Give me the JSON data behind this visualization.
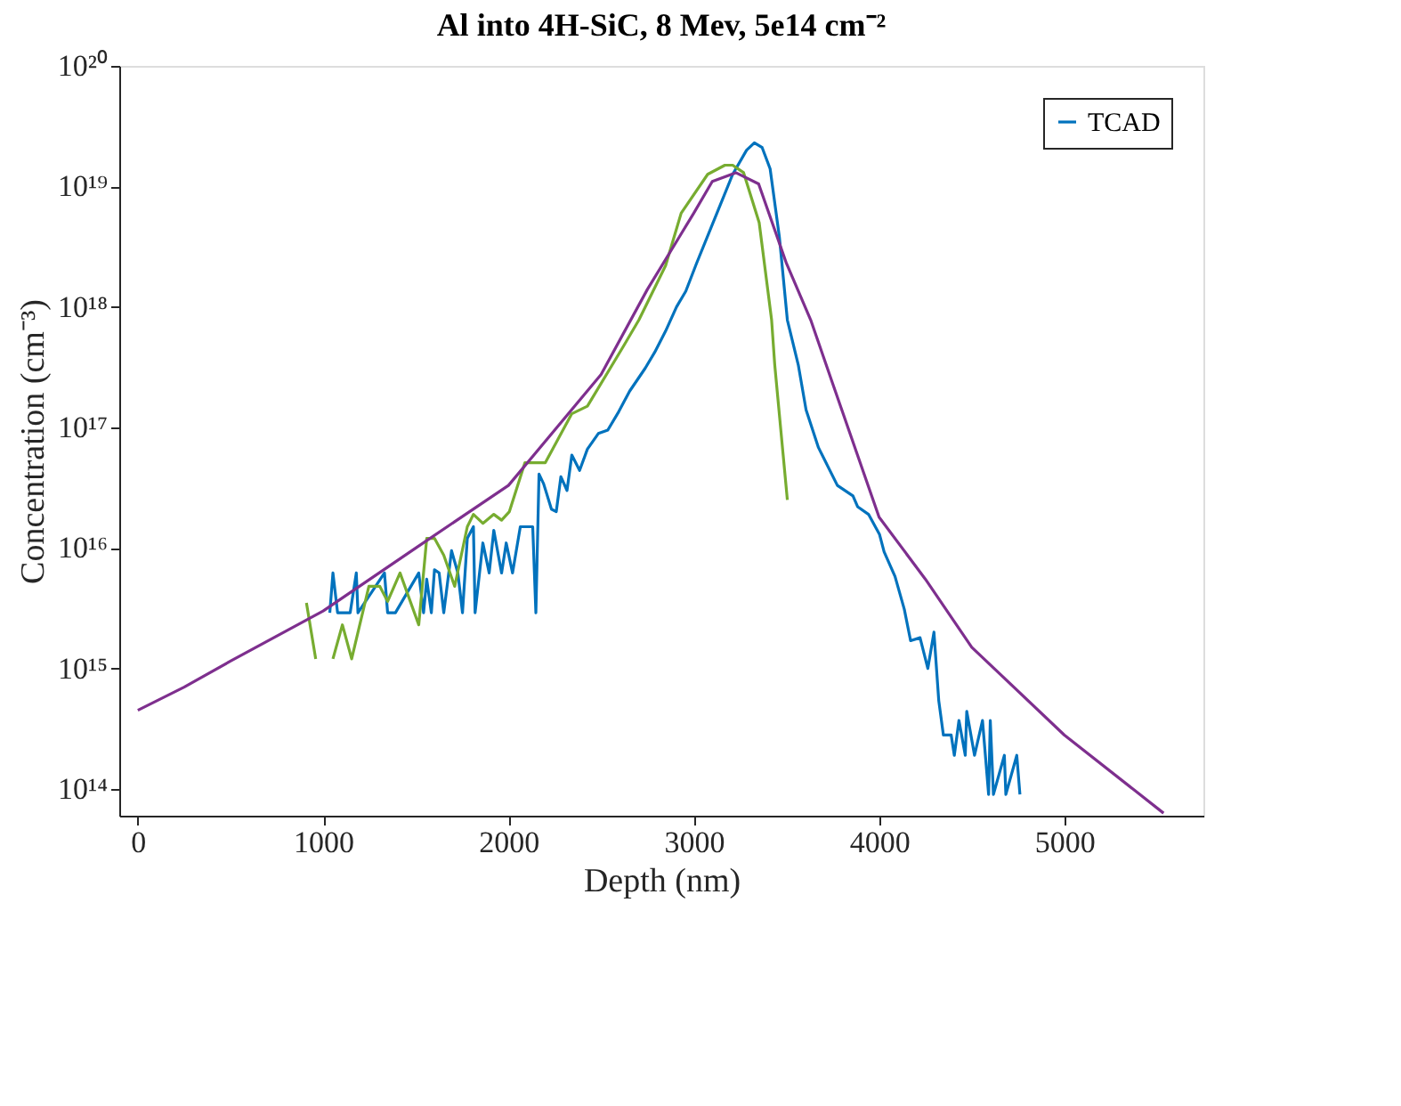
{
  "chart_data": {
    "type": "line",
    "title": "Al into 4H-SiC, 8 Mev, 5e14 cm⁻²",
    "xlabel": "Depth (nm)",
    "ylabel": "Concentration (cm⁻³)",
    "log": "y",
    "grid": false,
    "legend": "top right",
    "line_style": "solid",
    "marker": "none",
    "xlim": [
      -100,
      5750
    ],
    "xticks": [
      0,
      1000,
      2000,
      3000,
      4000,
      5000
    ],
    "ylim": [
      60000000000000.0,
      1e+20
    ],
    "yticks": [
      {
        "value": 100000000000000.0,
        "label": "10¹⁴"
      },
      {
        "value": 1000000000000000.0,
        "label": "10¹⁵"
      },
      {
        "value": 1e+16,
        "label": "10¹⁶"
      },
      {
        "value": 1e+17,
        "label": "10¹⁷"
      },
      {
        "value": 1e+18,
        "label": "10¹⁸"
      },
      {
        "value": 1e+19,
        "label": "10¹⁹"
      },
      {
        "value": 1e+20,
        "label": "10²⁰"
      }
    ],
    "series": [
      {
        "name": "TCAD",
        "color": "#0072bd",
        "x": [
          1036,
          1053,
          1078,
          1146,
          1179,
          1188,
          1331,
          1348,
          1390,
          1516,
          1542,
          1559,
          1584,
          1601,
          1626,
          1651,
          1693,
          1727,
          1752,
          1778,
          1811,
          1820,
          1862,
          1896,
          1921,
          1963,
          1988,
          2022,
          2064,
          2131,
          2148,
          2165,
          2190,
          2232,
          2258,
          2283,
          2316,
          2342,
          2384,
          2426,
          2485,
          2536,
          2595,
          2654,
          2738,
          2789,
          2848,
          2907,
          2957,
          3015,
          3125,
          3210,
          3285,
          3327,
          3369,
          3412,
          3462,
          3505,
          3564,
          3606,
          3673,
          3775,
          3859,
          3884,
          3943,
          4002,
          4027,
          4086,
          4136,
          4170,
          4221,
          4263,
          4296,
          4322,
          4347,
          4389,
          4406,
          4431,
          4465,
          4473,
          4515,
          4558,
          4591,
          4600,
          4617,
          4676,
          4684,
          4743,
          4760
        ],
        "values": [
          2900000000000000.0,
          6200000000000000.0,
          2900000000000000.0,
          2900000000000000.0,
          6200000000000000.0,
          2900000000000000.0,
          6200000000000000.0,
          2900000000000000.0,
          2900000000000000.0,
          6200000000000000.0,
          2900000000000000.0,
          5500000000000000.0,
          2900000000000000.0,
          6600000000000000.0,
          6200000000000000.0,
          2900000000000000.0,
          9500000000000000.0,
          6200000000000000.0,
          2900000000000000.0,
          1.2e+16,
          1.5e+16,
          2900000000000000.0,
          1.1e+16,
          6200000000000000.0,
          1.4e+16,
          6200000000000000.0,
          1.1e+16,
          6200000000000000.0,
          1.5e+16,
          1.5e+16,
          2900000000000000.0,
          4.1e+16,
          3.4e+16,
          2.1e+16,
          2e+16,
          3.9e+16,
          3e+16,
          5.9e+16,
          4.4e+16,
          6.6e+16,
          8.9e+16,
          9.5e+16,
          1.35e+17,
          2e+17,
          3.1e+17,
          4.2e+17,
          6.3e+17,
          1e+18,
          1.35e+18,
          2.3e+18,
          6e+18,
          1.26e+19,
          2e+19,
          2.3e+19,
          2.1e+19,
          1.4e+19,
          3.8e+18,
          7.8e+17,
          3.3e+17,
          1.4e+17,
          6.8e+16,
          3.3e+16,
          2.7e+16,
          2.2e+16,
          1.9e+16,
          1.3e+16,
          9300000000000000.0,
          5800000000000000.0,
          3100000000000000.0,
          1700000000000000.0,
          1800000000000000.0,
          1000000000000000.0,
          2000000000000000.0,
          540000000000000.0,
          280000000000000.0,
          280000000000000.0,
          190000000000000.0,
          370000000000000.0,
          190000000000000.0,
          440000000000000.0,
          190000000000000.0,
          370000000000000.0,
          90000000000000.0,
          370000000000000.0,
          90000000000000.0,
          190000000000000.0,
          90000000000000.0,
          190000000000000.0,
          90000000000000.0
        ]
      },
      {
        "color": "#77ac30",
        "x": [
          910,
          960,
          1000,
          1053,
          1104,
          1154,
          1247,
          1306,
          1348,
          1415,
          1516,
          1559,
          1601,
          1651,
          1710,
          1778,
          1811,
          1862,
          1921,
          1963,
          2005,
          2089,
          2199,
          2342,
          2426,
          2620,
          2704,
          2848,
          2932,
          3075,
          3168,
          3210,
          3269,
          3353,
          3420,
          3437,
          3505
        ],
        "values": [
          3500000000000000.0,
          1200000000000000.0,
          null,
          1200000000000000.0,
          2300000000000000.0,
          1200000000000000.0,
          4800000000000000.0,
          4800000000000000.0,
          3600000000000000.0,
          6200000000000000.0,
          2300000000000000.0,
          1.2e+16,
          1.2e+16,
          8700000000000000.0,
          4800000000000000.0,
          1.5e+16,
          1.9e+16,
          1.6e+16,
          1.9e+16,
          1.7e+16,
          2e+16,
          5.1e+16,
          5.1e+16,
          1.3e+17,
          1.5e+17,
          4.7e+17,
          7.8e+17,
          2.2e+18,
          6e+18,
          1.26e+19,
          1.5e+19,
          1.5e+19,
          1.3e+19,
          5e+18,
          7.8e+17,
          3.3e+17,
          2.5e+16
        ]
      },
      {
        "color": "#7e2f8e",
        "x": [
          0,
          250,
          500,
          1000,
          1500,
          2000,
          2500,
          2750,
          3000,
          3100,
          3227,
          3350,
          3500,
          3631,
          3750,
          4000,
          4250,
          4500,
          5000,
          5535
        ],
        "values": [
          450000000000000.0,
          700000000000000.0,
          1150000000000000.0,
          3000000000000000.0,
          1e+16,
          3.3e+16,
          2.75e+17,
          1.4e+18,
          6e+18,
          1.1e+19,
          1.3e+19,
          1.05e+19,
          2.3e+18,
          7.8e+17,
          2.3e+17,
          1.8e+16,
          5500000000000000.0,
          1500000000000000.0,
          280000000000000.0,
          63000000000000.0
        ]
      }
    ]
  }
}
